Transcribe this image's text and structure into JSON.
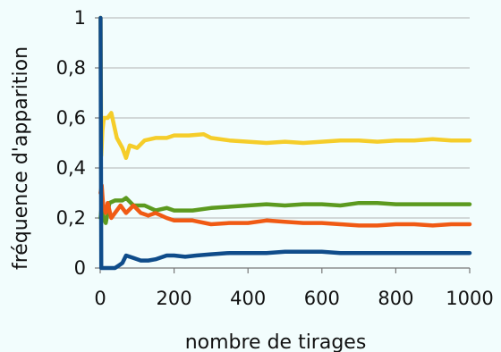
{
  "chart_data": {
    "type": "line",
    "xlabel": "nombre de tirages",
    "ylabel": "fréquence d'apparition",
    "xlim": [
      0,
      1000
    ],
    "ylim": [
      0,
      1
    ],
    "x_ticks": [
      0,
      200,
      400,
      600,
      800,
      1000
    ],
    "y_ticks": [
      0,
      0.2,
      0.4,
      0.6,
      0.8,
      1
    ],
    "x_tick_labels": [
      "0",
      "200",
      "400",
      "600",
      "800",
      "1000"
    ],
    "y_tick_labels": [
      "0",
      "0,2",
      "0,4",
      "0,6",
      "0,8",
      "1"
    ],
    "grid": "horizontal",
    "legend": "none",
    "series": [
      {
        "color": "#f5cd2a",
        "points": [
          [
            1,
            1
          ],
          [
            3,
            0.45
          ],
          [
            6,
            0.55
          ],
          [
            10,
            0.6
          ],
          [
            20,
            0.6
          ],
          [
            30,
            0.62
          ],
          [
            45,
            0.52
          ],
          [
            60,
            0.48
          ],
          [
            70,
            0.44
          ],
          [
            80,
            0.49
          ],
          [
            100,
            0.48
          ],
          [
            120,
            0.51
          ],
          [
            150,
            0.52
          ],
          [
            180,
            0.52
          ],
          [
            200,
            0.53
          ],
          [
            240,
            0.53
          ],
          [
            280,
            0.535
          ],
          [
            300,
            0.52
          ],
          [
            350,
            0.51
          ],
          [
            400,
            0.505
          ],
          [
            450,
            0.5
          ],
          [
            500,
            0.505
          ],
          [
            550,
            0.5
          ],
          [
            600,
            0.505
          ],
          [
            650,
            0.51
          ],
          [
            700,
            0.51
          ],
          [
            750,
            0.505
          ],
          [
            800,
            0.51
          ],
          [
            850,
            0.51
          ],
          [
            900,
            0.515
          ],
          [
            950,
            0.51
          ],
          [
            1000,
            0.51
          ]
        ]
      },
      {
        "color": "#5c9a1f",
        "points": [
          [
            1,
            0.2
          ],
          [
            4,
            0.25
          ],
          [
            8,
            0.2
          ],
          [
            15,
            0.18
          ],
          [
            25,
            0.26
          ],
          [
            40,
            0.27
          ],
          [
            60,
            0.27
          ],
          [
            70,
            0.28
          ],
          [
            90,
            0.25
          ],
          [
            120,
            0.25
          ],
          [
            150,
            0.23
          ],
          [
            180,
            0.24
          ],
          [
            200,
            0.23
          ],
          [
            250,
            0.23
          ],
          [
            300,
            0.24
          ],
          [
            350,
            0.245
          ],
          [
            400,
            0.25
          ],
          [
            450,
            0.255
          ],
          [
            500,
            0.25
          ],
          [
            550,
            0.255
          ],
          [
            600,
            0.255
          ],
          [
            650,
            0.25
          ],
          [
            700,
            0.26
          ],
          [
            750,
            0.26
          ],
          [
            800,
            0.255
          ],
          [
            850,
            0.255
          ],
          [
            900,
            0.255
          ],
          [
            950,
            0.255
          ],
          [
            1000,
            0.255
          ]
        ]
      },
      {
        "color": "#f05a14",
        "points": [
          [
            1,
            0.3
          ],
          [
            4,
            0.33
          ],
          [
            8,
            0.25
          ],
          [
            15,
            0.22
          ],
          [
            20,
            0.26
          ],
          [
            30,
            0.2
          ],
          [
            40,
            0.22
          ],
          [
            55,
            0.25
          ],
          [
            70,
            0.22
          ],
          [
            90,
            0.25
          ],
          [
            110,
            0.22
          ],
          [
            130,
            0.21
          ],
          [
            150,
            0.22
          ],
          [
            180,
            0.2
          ],
          [
            200,
            0.19
          ],
          [
            250,
            0.19
          ],
          [
            300,
            0.175
          ],
          [
            350,
            0.18
          ],
          [
            400,
            0.18
          ],
          [
            450,
            0.19
          ],
          [
            500,
            0.185
          ],
          [
            550,
            0.18
          ],
          [
            600,
            0.18
          ],
          [
            650,
            0.175
          ],
          [
            700,
            0.17
          ],
          [
            750,
            0.17
          ],
          [
            800,
            0.175
          ],
          [
            850,
            0.175
          ],
          [
            900,
            0.17
          ],
          [
            950,
            0.175
          ],
          [
            1000,
            0.175
          ]
        ]
      },
      {
        "color": "#0f4c8a",
        "points": [
          [
            1,
            1
          ],
          [
            3,
            0
          ],
          [
            10,
            0
          ],
          [
            40,
            0
          ],
          [
            50,
            0.01
          ],
          [
            60,
            0.02
          ],
          [
            70,
            0.05
          ],
          [
            90,
            0.04
          ],
          [
            110,
            0.03
          ],
          [
            130,
            0.03
          ],
          [
            150,
            0.035
          ],
          [
            180,
            0.05
          ],
          [
            200,
            0.05
          ],
          [
            230,
            0.045
          ],
          [
            260,
            0.05
          ],
          [
            300,
            0.055
          ],
          [
            350,
            0.06
          ],
          [
            400,
            0.06
          ],
          [
            450,
            0.06
          ],
          [
            500,
            0.065
          ],
          [
            550,
            0.065
          ],
          [
            600,
            0.065
          ],
          [
            650,
            0.06
          ],
          [
            700,
            0.06
          ],
          [
            750,
            0.06
          ],
          [
            800,
            0.06
          ],
          [
            850,
            0.06
          ],
          [
            900,
            0.06
          ],
          [
            950,
            0.06
          ],
          [
            1000,
            0.06
          ]
        ]
      }
    ]
  }
}
